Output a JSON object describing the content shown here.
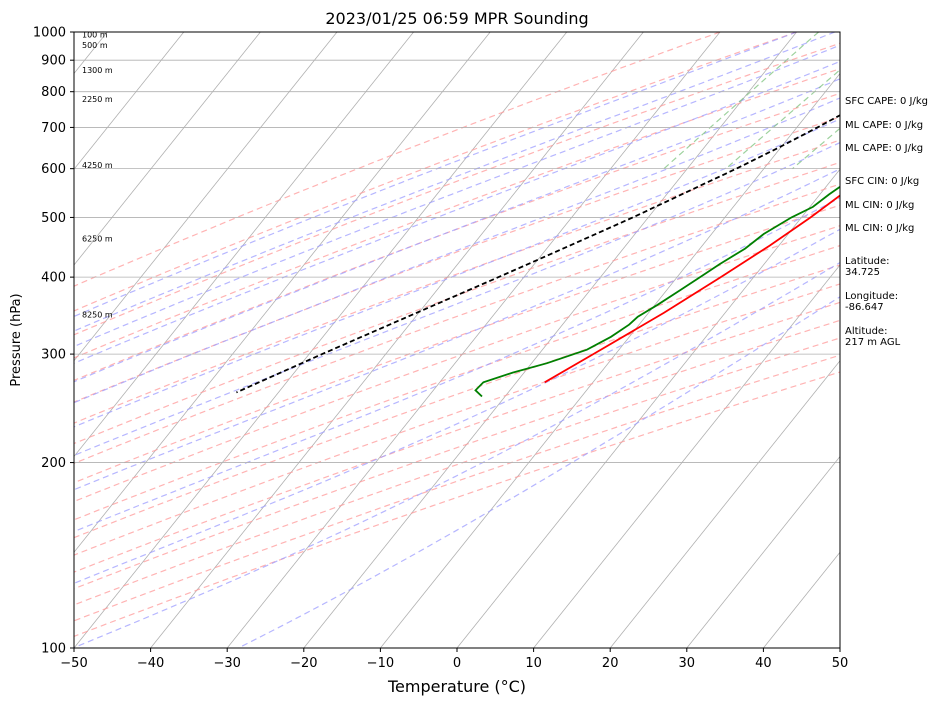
{
  "chart_data": {
    "type": "line",
    "title": "2023/01/25 06:59 MPR Sounding",
    "xlabel": "Temperature (°C)",
    "ylabel": "Pressure (hPa)",
    "xlim": [
      -50,
      50
    ],
    "ylim": [
      1000,
      100
    ],
    "y_scale": "log",
    "grid": true,
    "x_ticks": [
      -50,
      -40,
      -30,
      -20,
      -10,
      0,
      10,
      20,
      30,
      40,
      50
    ],
    "y_ticks": [
      100,
      200,
      300,
      400,
      500,
      600,
      700,
      800,
      900,
      1000
    ],
    "altitude_labels": [
      {
        "label": "100 m",
        "p": 990
      },
      {
        "label": "500 m",
        "p": 952
      },
      {
        "label": "1300 m",
        "p": 868
      },
      {
        "label": "2250 m",
        "p": 778
      },
      {
        "label": "4250 m",
        "p": 608
      },
      {
        "label": "6250 m",
        "p": 462
      },
      {
        "label": "8250 m",
        "p": 348
      }
    ],
    "series": [
      {
        "role": "temperature",
        "color": "#ff0000",
        "points": [
          {
            "p": 980,
            "t": 6.9
          },
          {
            "p": 965,
            "t": 6.6
          },
          {
            "p": 950,
            "t": 7.0
          },
          {
            "p": 930,
            "t": 8.0
          },
          {
            "p": 905,
            "t": 9.4
          },
          {
            "p": 880,
            "t": 10.3
          },
          {
            "p": 850,
            "t": 10.7
          },
          {
            "p": 820,
            "t": 10.5
          },
          {
            "p": 790,
            "t": 9.9
          },
          {
            "p": 760,
            "t": 9.0
          },
          {
            "p": 730,
            "t": 8.4
          },
          {
            "p": 700,
            "t": 7.5
          },
          {
            "p": 650,
            "t": 5.8
          },
          {
            "p": 600,
            "t": 4.6
          },
          {
            "p": 550,
            "t": 3.0
          },
          {
            "p": 500,
            "t": 1.2
          },
          {
            "p": 450,
            "t": -1.2
          },
          {
            "p": 400,
            "t": -4.3
          },
          {
            "p": 350,
            "t": -8.0
          },
          {
            "p": 300,
            "t": -12.9
          },
          {
            "p": 270,
            "t": -16.3
          }
        ]
      },
      {
        "role": "dewpoint",
        "color": "#008000",
        "points": [
          {
            "p": 980,
            "t": 6.9
          },
          {
            "p": 970,
            "t": 5.2
          },
          {
            "p": 960,
            "t": 4.9
          },
          {
            "p": 950,
            "t": 4.5
          },
          {
            "p": 935,
            "t": 4.5
          },
          {
            "p": 920,
            "t": 4.8
          },
          {
            "p": 900,
            "t": 5.4
          },
          {
            "p": 880,
            "t": 6.3
          },
          {
            "p": 860,
            "t": 6.6
          },
          {
            "p": 840,
            "t": 7.0
          },
          {
            "p": 825,
            "t": 8.8
          },
          {
            "p": 800,
            "t": 9.4
          },
          {
            "p": 780,
            "t": 9.7
          },
          {
            "p": 760,
            "t": 9.2
          },
          {
            "p": 730,
            "t": 8.5
          },
          {
            "p": 700,
            "t": 7.5
          },
          {
            "p": 660,
            "t": 6.0
          },
          {
            "p": 620,
            "t": 4.6
          },
          {
            "p": 590,
            "t": 3.4
          },
          {
            "p": 560,
            "t": 1.8
          },
          {
            "p": 545,
            "t": 1.2
          },
          {
            "p": 520,
            "t": 0.4
          },
          {
            "p": 500,
            "t": -1.3
          },
          {
            "p": 470,
            "t": -3.2
          },
          {
            "p": 445,
            "t": -4.1
          },
          {
            "p": 420,
            "t": -5.8
          },
          {
            "p": 400,
            "t": -7.0
          },
          {
            "p": 380,
            "t": -8.3
          },
          {
            "p": 360,
            "t": -9.7
          },
          {
            "p": 345,
            "t": -11.0
          },
          {
            "p": 335,
            "t": -11.3
          },
          {
            "p": 320,
            "t": -12.4
          },
          {
            "p": 305,
            "t": -14.2
          },
          {
            "p": 290,
            "t": -18.0
          },
          {
            "p": 280,
            "t": -21.5
          },
          {
            "p": 270,
            "t": -24.3
          },
          {
            "p": 262,
            "t": -24.5
          },
          {
            "p": 256,
            "t": -23.0
          }
        ]
      },
      {
        "role": "parcel",
        "color": "#000000",
        "dashed": true,
        "points": [
          {
            "p": 980,
            "t": 6.9
          },
          {
            "p": 950,
            "t": 4.5
          },
          {
            "p": 900,
            "t": 1.5
          },
          {
            "p": 850,
            "t": -0.6
          },
          {
            "p": 800,
            "t": -2.6
          },
          {
            "p": 750,
            "t": -4.8
          },
          {
            "p": 700,
            "t": -7.3
          },
          {
            "p": 650,
            "t": -10.2
          },
          {
            "p": 600,
            "t": -13.6
          },
          {
            "p": 550,
            "t": -17.6
          },
          {
            "p": 500,
            "t": -22.0
          },
          {
            "p": 450,
            "t": -27.3
          },
          {
            "p": 400,
            "t": -33.3
          },
          {
            "p": 350,
            "t": -40.3
          },
          {
            "p": 300,
            "t": -48.3
          },
          {
            "p": 260,
            "t": -55.5
          }
        ]
      }
    ],
    "side_labels": [
      "SFC CAPE: 0 J/kg",
      "ML CAPE: 0 J/kg",
      "ML CAPE: 0 J/kg",
      "SFC CIN: 0 J/kg",
      "ML CIN: 0 J/kg",
      "ML CIN: 0 J/kg",
      "Latitude:",
      "34.725",
      "Longitude:",
      "-86.647",
      "Altitude:",
      "217 m AGL"
    ],
    "colors": {
      "isotherm": "#b0b0b0",
      "dry_adiabat": "#ff9a9a",
      "moist_adiabat": "#9d9dff",
      "mixing_ratio": "#7cc27c",
      "grid": "#b0b0b0"
    }
  }
}
